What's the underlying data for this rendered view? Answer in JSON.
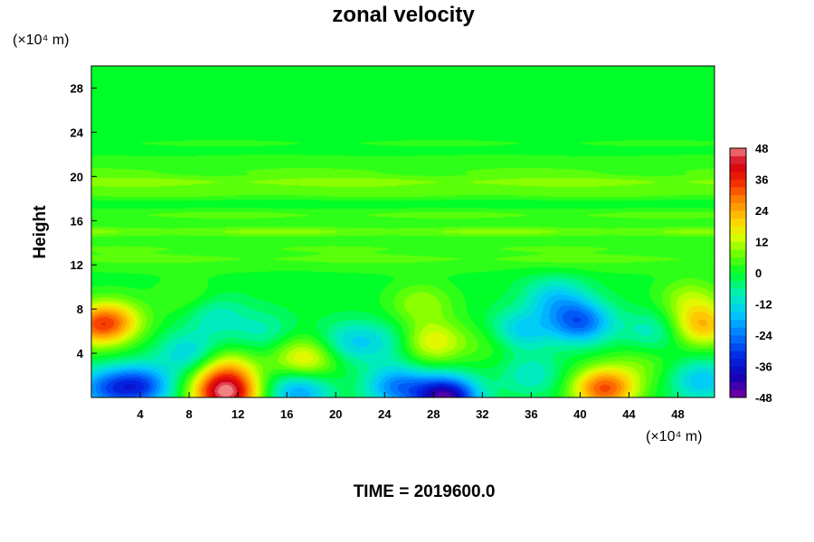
{
  "chart_data": {
    "type": "heatmap",
    "title": "zonal velocity",
    "xlabel": "",
    "ylabel": "Height",
    "x_unit_label": "(×10⁴ m)",
    "y_unit_label": "(×10⁴ m)",
    "x_ticks": [
      "4",
      "8",
      "12",
      "16",
      "20",
      "24",
      "28",
      "32",
      "36",
      "40",
      "44",
      "48"
    ],
    "y_ticks": [
      "4",
      "8",
      "12",
      "16",
      "20",
      "24",
      "28"
    ],
    "xlim": [
      0,
      51
    ],
    "ylim": [
      0,
      30
    ],
    "colorbar": {
      "ticks": [
        "48",
        "36",
        "24",
        "12",
        "0",
        "-12",
        "-24",
        "-36",
        "-48"
      ],
      "min": -48,
      "max": 48
    },
    "annotation": "TIME = 2019600.0",
    "background_value": 0,
    "features": [
      {
        "x": 0.5,
        "y": 6.5,
        "value": 24
      },
      {
        "x": 2,
        "y": 7,
        "value": 14
      },
      {
        "x": 8,
        "y": 9,
        "value": 6
      },
      {
        "x": 11,
        "y": 0.3,
        "value": 44
      },
      {
        "x": 11,
        "y": 2.5,
        "value": 18
      },
      {
        "x": 4,
        "y": 1,
        "value": -28
      },
      {
        "x": 1,
        "y": 0.8,
        "value": -20
      },
      {
        "x": 8,
        "y": 4,
        "value": -14
      },
      {
        "x": 10,
        "y": 7.5,
        "value": -10
      },
      {
        "x": 14,
        "y": 6,
        "value": -8
      },
      {
        "x": 17.5,
        "y": 3.5,
        "value": 18
      },
      {
        "x": 17,
        "y": 0.5,
        "value": -20
      },
      {
        "x": 21,
        "y": 5,
        "value": -12
      },
      {
        "x": 24,
        "y": 5,
        "value": -8
      },
      {
        "x": 28,
        "y": 5,
        "value": 16
      },
      {
        "x": 27,
        "y": 8.5,
        "value": 10
      },
      {
        "x": 29,
        "y": 0,
        "value": -44
      },
      {
        "x": 25,
        "y": 1,
        "value": -22
      },
      {
        "x": 33,
        "y": 5,
        "value": 6
      },
      {
        "x": 36,
        "y": 2,
        "value": -10
      },
      {
        "x": 40,
        "y": 6.8,
        "value": -26
      },
      {
        "x": 38,
        "y": 9,
        "value": -14
      },
      {
        "x": 35,
        "y": 6,
        "value": -16
      },
      {
        "x": 42,
        "y": 0.8,
        "value": 32
      },
      {
        "x": 45,
        "y": 3,
        "value": 6
      },
      {
        "x": 46,
        "y": 6,
        "value": -10
      },
      {
        "x": 50,
        "y": 6.5,
        "value": 22
      },
      {
        "x": 49,
        "y": 9,
        "value": 10
      },
      {
        "x": 50,
        "y": 1.5,
        "value": -16
      }
    ],
    "upper_bands": [
      {
        "y": 11.5,
        "value": 2
      },
      {
        "y": 12.5,
        "value": 6
      },
      {
        "y": 13.5,
        "value": 5
      },
      {
        "y": 15,
        "value": 9
      },
      {
        "y": 16.5,
        "value": 6
      },
      {
        "y": 18.5,
        "value": 7
      },
      {
        "y": 19.5,
        "value": 10
      },
      {
        "y": 20.5,
        "value": 5
      },
      {
        "y": 21.5,
        "value": 3
      },
      {
        "y": 23,
        "value": 2
      }
    ]
  }
}
